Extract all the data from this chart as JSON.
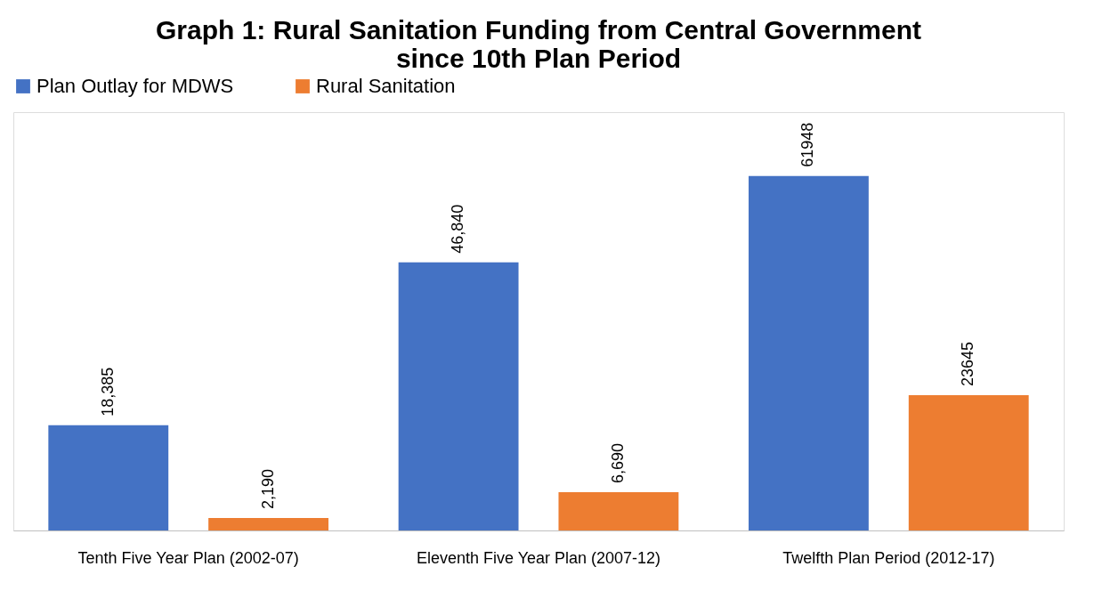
{
  "chart_data": {
    "type": "bar",
    "title": [
      "Graph 1: Rural Sanitation Funding from Central Government",
      "since 10th Plan Period"
    ],
    "categories": [
      "Tenth  Five Year Plan (2002-07)",
      "Eleventh Five Year Plan (2007-12)",
      "Twelfth Plan Period (2012-17)"
    ],
    "series": [
      {
        "name": "Plan Outlay  for MDWS",
        "color": "#4472c4",
        "values": [
          18385,
          46840,
          61948
        ],
        "value_labels": [
          "18,385",
          "46,840",
          "61948"
        ]
      },
      {
        "name": "Rural Sanitation",
        "color": "#ed7d31",
        "values": [
          2190,
          6690,
          23645
        ],
        "value_labels": [
          "2,190",
          "6,690",
          "23645"
        ]
      }
    ],
    "legend": "top",
    "grid": false
  }
}
